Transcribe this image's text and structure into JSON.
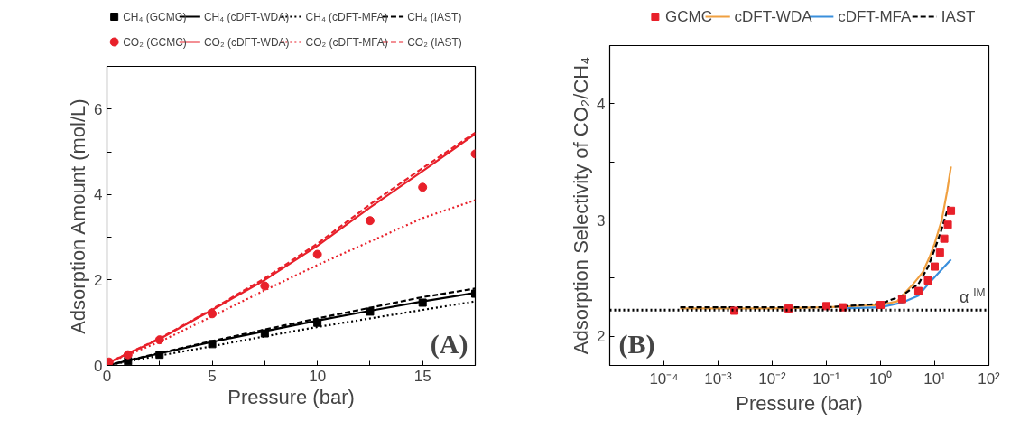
{
  "chart_data": [
    {
      "type": "line",
      "xlabel": "Pressure (bar)",
      "ylabel": "Adsorption Amount (mol/L)",
      "xlim": [
        0,
        17.5
      ],
      "ylim": [
        0,
        7
      ],
      "xticks": [
        0,
        {
          "value": 2.5,
          "label": null
        },
        5,
        {
          "value": 7.5,
          "label": null
        },
        10,
        {
          "value": 12.5,
          "label": null
        },
        15
      ],
      "yticks": [
        0,
        {
          "value": 1,
          "label": null
        },
        2,
        {
          "value": 3,
          "label": null
        },
        4,
        {
          "value": 5,
          "label": null
        },
        6
      ],
      "grid": false,
      "legend": "top",
      "annotations": [
        "(A)"
      ],
      "series": [
        {
          "name": "CH₄ (GCMC)",
          "type": "scatter",
          "marker": "square",
          "color": "#000000",
          "x": [
            1,
            2.5,
            5,
            7.5,
            10,
            12.5,
            15,
            17.5
          ],
          "values": [
            0.1,
            0.25,
            0.5,
            0.75,
            1.0,
            1.26,
            1.47,
            1.68
          ]
        },
        {
          "name": "CH₄ (cDFT-WDA)",
          "line_style": "solid",
          "color": "#000000",
          "x": [
            0,
            2.5,
            5,
            7.5,
            10,
            12.5,
            15,
            17.5
          ],
          "values": [
            0,
            0.28,
            0.55,
            0.8,
            1.05,
            1.28,
            1.5,
            1.7
          ]
        },
        {
          "name": "CH₄ (cDFT-MFA)",
          "line_style": "dotted",
          "color": "#000000",
          "x": [
            0,
            2.5,
            5,
            7.5,
            10,
            12.5,
            15,
            17.5
          ],
          "values": [
            0,
            0.23,
            0.45,
            0.68,
            0.9,
            1.1,
            1.3,
            1.5
          ]
        },
        {
          "name": "CH₄ (IAST)",
          "line_style": "dashed",
          "color": "#000000",
          "x": [
            0,
            2.5,
            5,
            7.5,
            10,
            12.5,
            15,
            17.5
          ],
          "values": [
            0,
            0.29,
            0.57,
            0.84,
            1.1,
            1.35,
            1.6,
            1.8
          ]
        },
        {
          "name": "CO₂ (GCMC)",
          "type": "scatter",
          "marker": "circle",
          "color": "#e8202a",
          "x": [
            0.1,
            1,
            2.5,
            5,
            7.5,
            10,
            12.5,
            15,
            17.5
          ],
          "values": [
            0.08,
            0.25,
            0.6,
            1.21,
            1.86,
            2.6,
            3.39,
            4.17,
            4.95
          ]
        },
        {
          "name": "CO₂ (cDFT-WDA)",
          "line_style": "solid",
          "color": "#e8202a",
          "x": [
            0,
            2.5,
            5,
            7.5,
            10,
            12.5,
            15,
            17.5
          ],
          "values": [
            0.05,
            0.62,
            1.3,
            2.0,
            2.8,
            3.7,
            4.55,
            5.42
          ]
        },
        {
          "name": "CO₂ (cDFT-MFA)",
          "line_style": "dotted",
          "color": "#e8202a",
          "x": [
            0,
            2.5,
            5,
            7.5,
            10,
            12.5,
            15,
            17.5
          ],
          "values": [
            0.05,
            0.55,
            1.15,
            1.76,
            2.35,
            2.9,
            3.45,
            3.87
          ]
        },
        {
          "name": "CO₂ (IAST)",
          "line_style": "dashed",
          "color": "#e8202a",
          "x": [
            0,
            2.5,
            5,
            7.5,
            10,
            12.5,
            15,
            17.5
          ],
          "values": [
            0.05,
            0.63,
            1.32,
            2.04,
            2.85,
            3.77,
            4.62,
            5.45
          ]
        }
      ]
    },
    {
      "type": "line",
      "xlabel": "Pressure (bar)",
      "ylabel": "Adsorption Selectivity of CO₂/CH₄",
      "log": "x",
      "xlim": [
        1e-05,
        100
      ],
      "ylim": [
        1.75,
        4.5
      ],
      "xticks": [
        {
          "value": 0.0001,
          "label": "10⁻⁴"
        },
        {
          "value": 0.001,
          "label": "10⁻³"
        },
        {
          "value": 0.01,
          "label": "10⁻²"
        },
        {
          "value": 0.1,
          "label": "10⁻¹"
        },
        {
          "value": 1,
          "label": "10⁰"
        },
        {
          "value": 10,
          "label": "10¹"
        },
        {
          "value": 100,
          "label": "10²"
        }
      ],
      "yticks": [
        2,
        {
          "value": 2.5,
          "label": null
        },
        3,
        {
          "value": 3.5,
          "label": null
        },
        4
      ],
      "grid": false,
      "legend": "top",
      "annotations": [
        "(B)"
      ],
      "ref_lines": [
        {
          "axis": "y",
          "value": 2.225,
          "label": "α$^{IM}$",
          "color": "#000000",
          "line_style": "dotted"
        }
      ],
      "series": [
        {
          "name": "GCMC",
          "type": "scatter",
          "marker": "square",
          "color": "#e8202a",
          "x": [
            0.002,
            0.02,
            0.1,
            0.2,
            1,
            2.5,
            5,
            7.5,
            10,
            12.5,
            15,
            17.5,
            20
          ],
          "values": [
            2.22,
            2.24,
            2.26,
            2.25,
            2.27,
            2.32,
            2.39,
            2.48,
            2.6,
            2.72,
            2.84,
            2.96,
            3.08
          ]
        },
        {
          "name": "cDFT-WDA",
          "line_style": "solid",
          "color": "#f0a040",
          "x": [
            0.0002,
            0.01,
            0.1,
            1,
            2,
            4,
            6,
            8,
            10,
            13.5,
            17,
            20
          ],
          "values": [
            2.24,
            2.24,
            2.25,
            2.27,
            2.3,
            2.45,
            2.55,
            2.68,
            2.8,
            3.0,
            3.25,
            3.46
          ]
        },
        {
          "name": "cDFT-MFA",
          "line_style": "solid",
          "color": "#3a8fdc",
          "x": [
            0.2,
            1,
            2.5,
            5,
            7.6,
            12,
            20
          ],
          "values": [
            2.24,
            2.25,
            2.29,
            2.35,
            2.45,
            2.55,
            2.66
          ]
        },
        {
          "name": "IAST",
          "line_style": "dashed",
          "color": "#000000",
          "x": [
            0.0002,
            0.1,
            1,
            2.5,
            5,
            7.6,
            10,
            13,
            18
          ],
          "values": [
            2.25,
            2.25,
            2.28,
            2.35,
            2.45,
            2.6,
            2.75,
            2.9,
            3.12
          ]
        }
      ]
    }
  ]
}
